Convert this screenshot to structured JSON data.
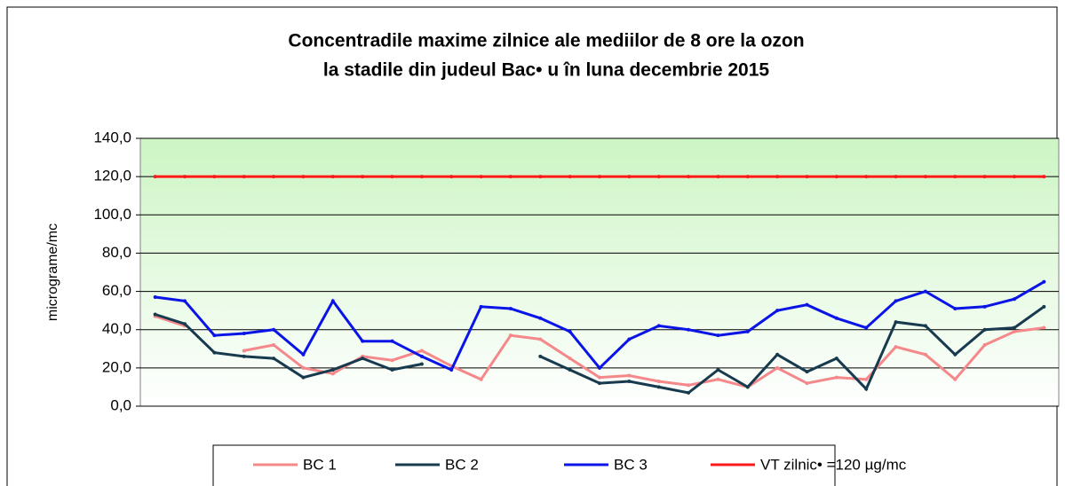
{
  "chart_data": {
    "type": "line",
    "title": [
      "Concentradile maxime zilnice ale mediilor de 8 ore la ozon",
      "la stadile din judeul Bac• u în luna decembrie 2015"
    ],
    "y_label": "micrograme/mc",
    "categories": [
      null,
      null,
      null,
      null,
      null,
      null,
      null,
      null,
      null,
      null,
      null,
      null,
      null,
      null,
      null,
      null,
      null,
      null,
      null,
      null,
      null,
      null,
      null,
      null,
      null,
      null,
      null,
      null,
      null,
      null,
      null
    ],
    "series": [
      {
        "name": "BC 1",
        "color": "#f4888a",
        "values": [
          47,
          42,
          null,
          29,
          32,
          20,
          17,
          26,
          24,
          29,
          21,
          14,
          37,
          35,
          25,
          15,
          16,
          13,
          11,
          14,
          10,
          20,
          12,
          15,
          14,
          31,
          27,
          14,
          32,
          39,
          41
        ]
      },
      {
        "name": "BC 2",
        "color": "#173a4e",
        "values": [
          48,
          43,
          28,
          26,
          25,
          15,
          19,
          25,
          19,
          22,
          null,
          null,
          null,
          26,
          19,
          12,
          13,
          10,
          7,
          19,
          10,
          27,
          18,
          25,
          9,
          44,
          42,
          27,
          40,
          41,
          52
        ]
      },
      {
        "name": "BC 3",
        "color": "#0a14e6",
        "values": [
          57,
          55,
          37,
          38,
          40,
          27,
          55,
          34,
          34,
          26,
          19,
          52,
          51,
          46,
          39,
          20,
          35,
          42,
          40,
          37,
          39,
          50,
          53,
          46,
          41,
          55,
          60,
          51,
          52,
          56,
          65
        ]
      },
      {
        "name": "VT zilnic• =120 µg/mc",
        "color": "#ff1a1a",
        "values": [
          120,
          120,
          120,
          120,
          120,
          120,
          120,
          120,
          120,
          120,
          120,
          120,
          120,
          120,
          120,
          120,
          120,
          120,
          120,
          120,
          120,
          120,
          120,
          120,
          120,
          120,
          120,
          120,
          120,
          120,
          120
        ]
      }
    ],
    "ylim": [
      0,
      140
    ],
    "yticks": [
      {
        "value": 0,
        "label": "0,0"
      },
      {
        "value": 20,
        "label": "20,0"
      },
      {
        "value": 40,
        "label": "40,0"
      },
      {
        "value": 60,
        "label": "60,0"
      },
      {
        "value": 80,
        "label": "80,0"
      },
      {
        "value": 100,
        "label": "100,0"
      },
      {
        "value": 120,
        "label": "120,0"
      },
      {
        "value": 140,
        "label": "140,0"
      }
    ],
    "grid": true,
    "legend": "bottom"
  }
}
